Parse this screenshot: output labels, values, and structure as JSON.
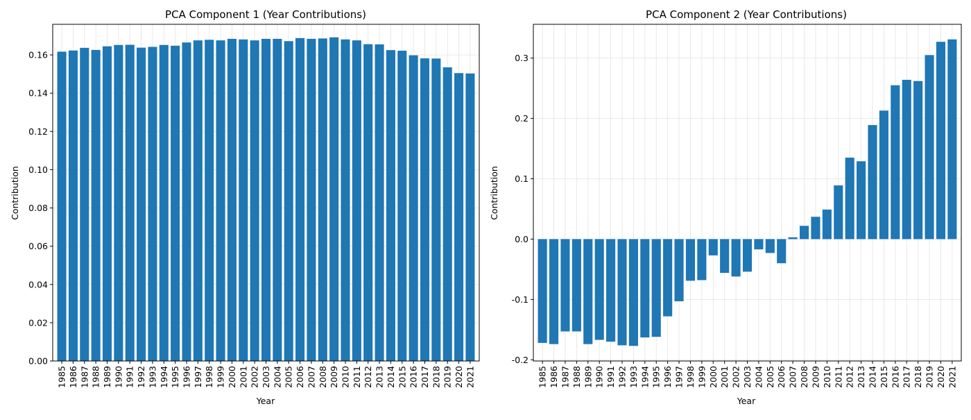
{
  "chart_data": [
    {
      "type": "bar",
      "title": "PCA Component 1 (Year Contributions)",
      "xlabel": "Year",
      "ylabel": "Contribution",
      "ylim": [
        0,
        0.176
      ],
      "yticks": [
        "0.00",
        "0.02",
        "0.04",
        "0.06",
        "0.08",
        "0.10",
        "0.12",
        "0.14",
        "0.16"
      ],
      "grid": true,
      "bar_color": "#1f77b4",
      "categories": [
        "1985",
        "1986",
        "1987",
        "1988",
        "1989",
        "1990",
        "1991",
        "1992",
        "1993",
        "1994",
        "1995",
        "1996",
        "1997",
        "1998",
        "1999",
        "2000",
        "2001",
        "2002",
        "2003",
        "2004",
        "2005",
        "2006",
        "2007",
        "2008",
        "2009",
        "2010",
        "2011",
        "2012",
        "2013",
        "2014",
        "2015",
        "2016",
        "2017",
        "2018",
        "2019",
        "2020",
        "2021"
      ],
      "values": [
        0.1617,
        0.1623,
        0.1637,
        0.1626,
        0.1645,
        0.1652,
        0.1653,
        0.1638,
        0.1642,
        0.1652,
        0.1648,
        0.1665,
        0.1676,
        0.1679,
        0.1676,
        0.1684,
        0.1681,
        0.1676,
        0.1684,
        0.1684,
        0.1672,
        0.1688,
        0.1684,
        0.1686,
        0.1692,
        0.1681,
        0.1676,
        0.1656,
        0.1655,
        0.1625,
        0.1622,
        0.1598,
        0.1582,
        0.1581,
        0.1535,
        0.1505,
        0.1503
      ]
    },
    {
      "type": "bar",
      "title": "PCA Component 2 (Year Contributions)",
      "xlabel": "Year",
      "ylabel": "Contribution",
      "ylim": [
        -0.202,
        0.356
      ],
      "yticks": [
        "-0.2",
        "-0.1",
        "0.0",
        "0.1",
        "0.2",
        "0.3"
      ],
      "grid": true,
      "bar_color": "#1f77b4",
      "categories": [
        "1985",
        "1986",
        "1987",
        "1988",
        "1989",
        "1990",
        "1991",
        "1992",
        "1993",
        "1994",
        "1995",
        "1996",
        "1997",
        "1998",
        "1999",
        "2000",
        "2001",
        "2002",
        "2003",
        "2004",
        "2005",
        "2006",
        "2007",
        "2008",
        "2009",
        "2010",
        "2011",
        "2012",
        "2013",
        "2014",
        "2015",
        "2016",
        "2017",
        "2018",
        "2019",
        "2020",
        "2021"
      ],
      "values": [
        -0.172,
        -0.174,
        -0.153,
        -0.153,
        -0.174,
        -0.167,
        -0.17,
        -0.176,
        -0.177,
        -0.163,
        -0.162,
        -0.128,
        -0.103,
        -0.069,
        -0.068,
        -0.027,
        -0.056,
        -0.062,
        -0.054,
        -0.017,
        -0.023,
        -0.04,
        0.003,
        0.022,
        0.037,
        0.049,
        0.089,
        0.135,
        0.129,
        0.189,
        0.213,
        0.255,
        0.264,
        0.262,
        0.305,
        0.327,
        0.331
      ]
    }
  ]
}
